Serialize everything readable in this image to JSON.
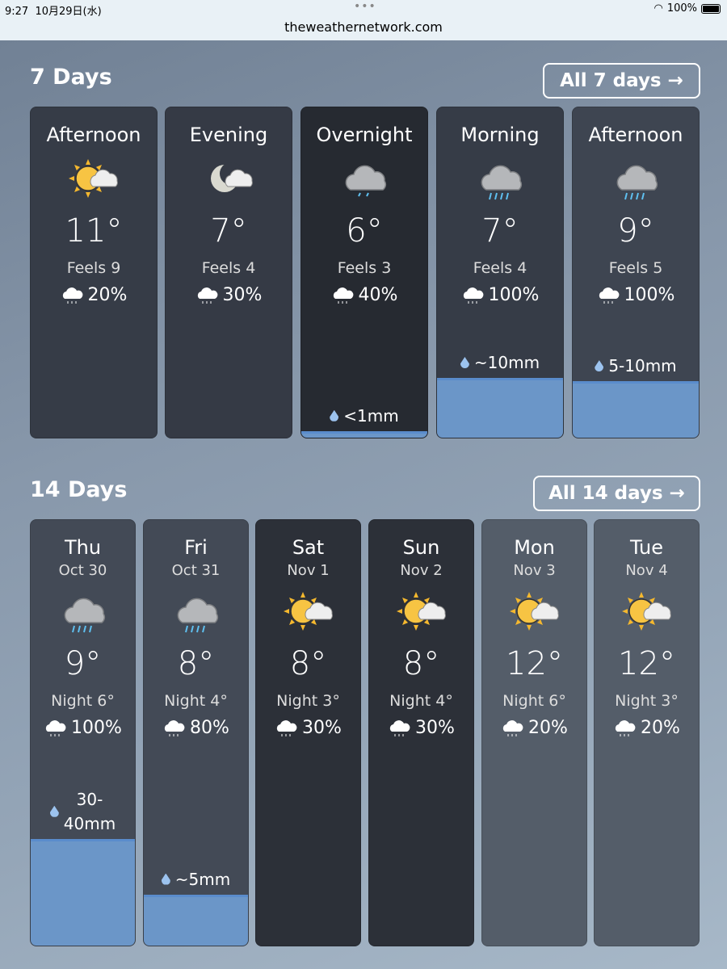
{
  "status": {
    "time": "9:27",
    "date": "10月29日(水)",
    "battery": "100%",
    "url": "theweathernetwork.com"
  },
  "colors": {
    "rain_fill": "#6b96c8",
    "drop": "#9cc3ef",
    "sun": "#f5b82e"
  },
  "seven": {
    "title": "7 Days",
    "button": "All 7 days",
    "arrow": "→",
    "cards": [
      {
        "label": "Afternoon",
        "icon": "sun-cloud",
        "temp": "11°",
        "feels": "Feels 9",
        "pop": "20%",
        "amount": "",
        "fill": 0,
        "bg": "#363c47"
      },
      {
        "label": "Evening",
        "icon": "moon-cloud",
        "temp": "7°",
        "feels": "Feels 4",
        "pop": "30%",
        "amount": "",
        "fill": 0,
        "bg": "#353a45"
      },
      {
        "label": "Overnight",
        "icon": "cloud-light-rain",
        "temp": "6°",
        "feels": "Feels 3",
        "pop": "40%",
        "amount": "<1mm",
        "fill": 0.02,
        "bg": "#262a31"
      },
      {
        "label": "Morning",
        "icon": "cloud-rain",
        "temp": "7°",
        "feels": "Feels 4",
        "pop": "100%",
        "amount": "~10mm",
        "fill": 0.18,
        "bg": "#363c47"
      },
      {
        "label": "Afternoon",
        "icon": "cloud-rain",
        "temp": "9°",
        "feels": "Feels 5",
        "pop": "100%",
        "amount": "5-10mm",
        "fill": 0.17,
        "bg": "#3e4551"
      }
    ]
  },
  "fourteen": {
    "title": "14 Days",
    "button": "All 14 days",
    "arrow": "→",
    "cards": [
      {
        "label": "Thu",
        "date": "Oct 30",
        "icon": "cloud-rain",
        "temp": "9°",
        "night": "Night 6°",
        "pop": "100%",
        "amount": "30-\n40mm",
        "fill": 0.25,
        "bg": "#434a56"
      },
      {
        "label": "Fri",
        "date": "Oct 31",
        "icon": "cloud-rain",
        "temp": "8°",
        "night": "Night 4°",
        "pop": "80%",
        "amount": "~5mm",
        "fill": 0.12,
        "bg": "#434a56"
      },
      {
        "label": "Sat",
        "date": "Nov 1",
        "icon": "sun-cloud",
        "temp": "8°",
        "night": "Night 3°",
        "pop": "30%",
        "amount": "",
        "fill": 0,
        "bg": "#2c3038"
      },
      {
        "label": "Sun",
        "date": "Nov 2",
        "icon": "sun-cloud",
        "temp": "8°",
        "night": "Night 4°",
        "pop": "30%",
        "amount": "",
        "fill": 0,
        "bg": "#2c3038"
      },
      {
        "label": "Mon",
        "date": "Nov 3",
        "icon": "sun-cloud",
        "temp": "12°",
        "night": "Night 6°",
        "pop": "20%",
        "amount": "",
        "fill": 0,
        "bg": "#545d69"
      },
      {
        "label": "Tue",
        "date": "Nov 4",
        "icon": "sun-cloud",
        "temp": "12°",
        "night": "Night 3°",
        "pop": "20%",
        "amount": "",
        "fill": 0,
        "bg": "#545d69"
      }
    ]
  }
}
